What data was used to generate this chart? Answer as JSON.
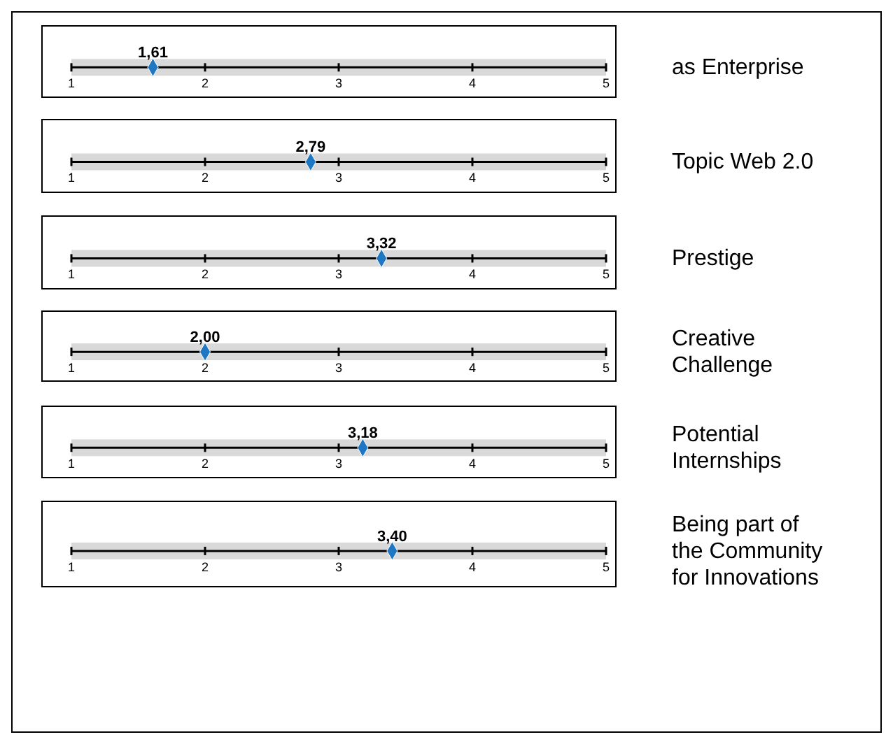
{
  "chart_data": [
    {
      "type": "scatter",
      "orientation": "horizontal",
      "categories": [
        "as Enterprise"
      ],
      "values": [
        1.61
      ],
      "value_labels": [
        "1,61"
      ],
      "bands": [
        {
          "axis": "x",
          "from": 1,
          "to": 5,
          "color": "#d9d9d9"
        }
      ],
      "color": "#1f77c4",
      "marker": "diamond",
      "xlim": [
        1,
        5
      ],
      "xticks": [
        1,
        2,
        3,
        4,
        5
      ]
    },
    {
      "type": "scatter",
      "orientation": "horizontal",
      "categories": [
        "Topic Web 2.0"
      ],
      "values": [
        2.79
      ],
      "value_labels": [
        "2,79"
      ],
      "bands": [
        {
          "axis": "x",
          "from": 1,
          "to": 5,
          "color": "#d9d9d9"
        }
      ],
      "color": "#1f77c4",
      "marker": "diamond",
      "xlim": [
        1,
        5
      ],
      "xticks": [
        1,
        2,
        3,
        4,
        5
      ]
    },
    {
      "type": "scatter",
      "orientation": "horizontal",
      "categories": [
        "Prestige"
      ],
      "values": [
        3.32
      ],
      "value_labels": [
        "3,32"
      ],
      "bands": [
        {
          "axis": "x",
          "from": 1,
          "to": 5,
          "color": "#d9d9d9"
        }
      ],
      "color": "#1f77c4",
      "marker": "diamond",
      "xlim": [
        1,
        5
      ],
      "xticks": [
        1,
        2,
        3,
        4,
        5
      ]
    },
    {
      "type": "scatter",
      "orientation": "horizontal",
      "categories": [
        "Creative Challenge"
      ],
      "values": [
        2.0
      ],
      "value_labels": [
        "2,00"
      ],
      "bands": [
        {
          "axis": "x",
          "from": 1,
          "to": 5,
          "color": "#d9d9d9"
        }
      ],
      "color": "#1f77c4",
      "marker": "diamond",
      "xlim": [
        1,
        5
      ],
      "xticks": [
        1,
        2,
        3,
        4,
        5
      ]
    },
    {
      "type": "scatter",
      "orientation": "horizontal",
      "categories": [
        "Potential Internships"
      ],
      "values": [
        3.18
      ],
      "value_labels": [
        "3,18"
      ],
      "bands": [
        {
          "axis": "x",
          "from": 1,
          "to": 5,
          "color": "#d9d9d9"
        }
      ],
      "color": "#1f77c4",
      "marker": "diamond",
      "xlim": [
        1,
        5
      ],
      "xticks": [
        1,
        2,
        3,
        4,
        5
      ]
    },
    {
      "type": "scatter",
      "orientation": "horizontal",
      "categories": [
        "Being part of the Community for Innovations"
      ],
      "values": [
        3.4
      ],
      "value_labels": [
        "3,40"
      ],
      "bands": [
        {
          "axis": "x",
          "from": 1,
          "to": 5,
          "color": "#d9d9d9"
        }
      ],
      "color": "#1f77c4",
      "marker": "diamond",
      "xlim": [
        1,
        5
      ],
      "xticks": [
        1,
        2,
        3,
        4,
        5
      ]
    }
  ]
}
